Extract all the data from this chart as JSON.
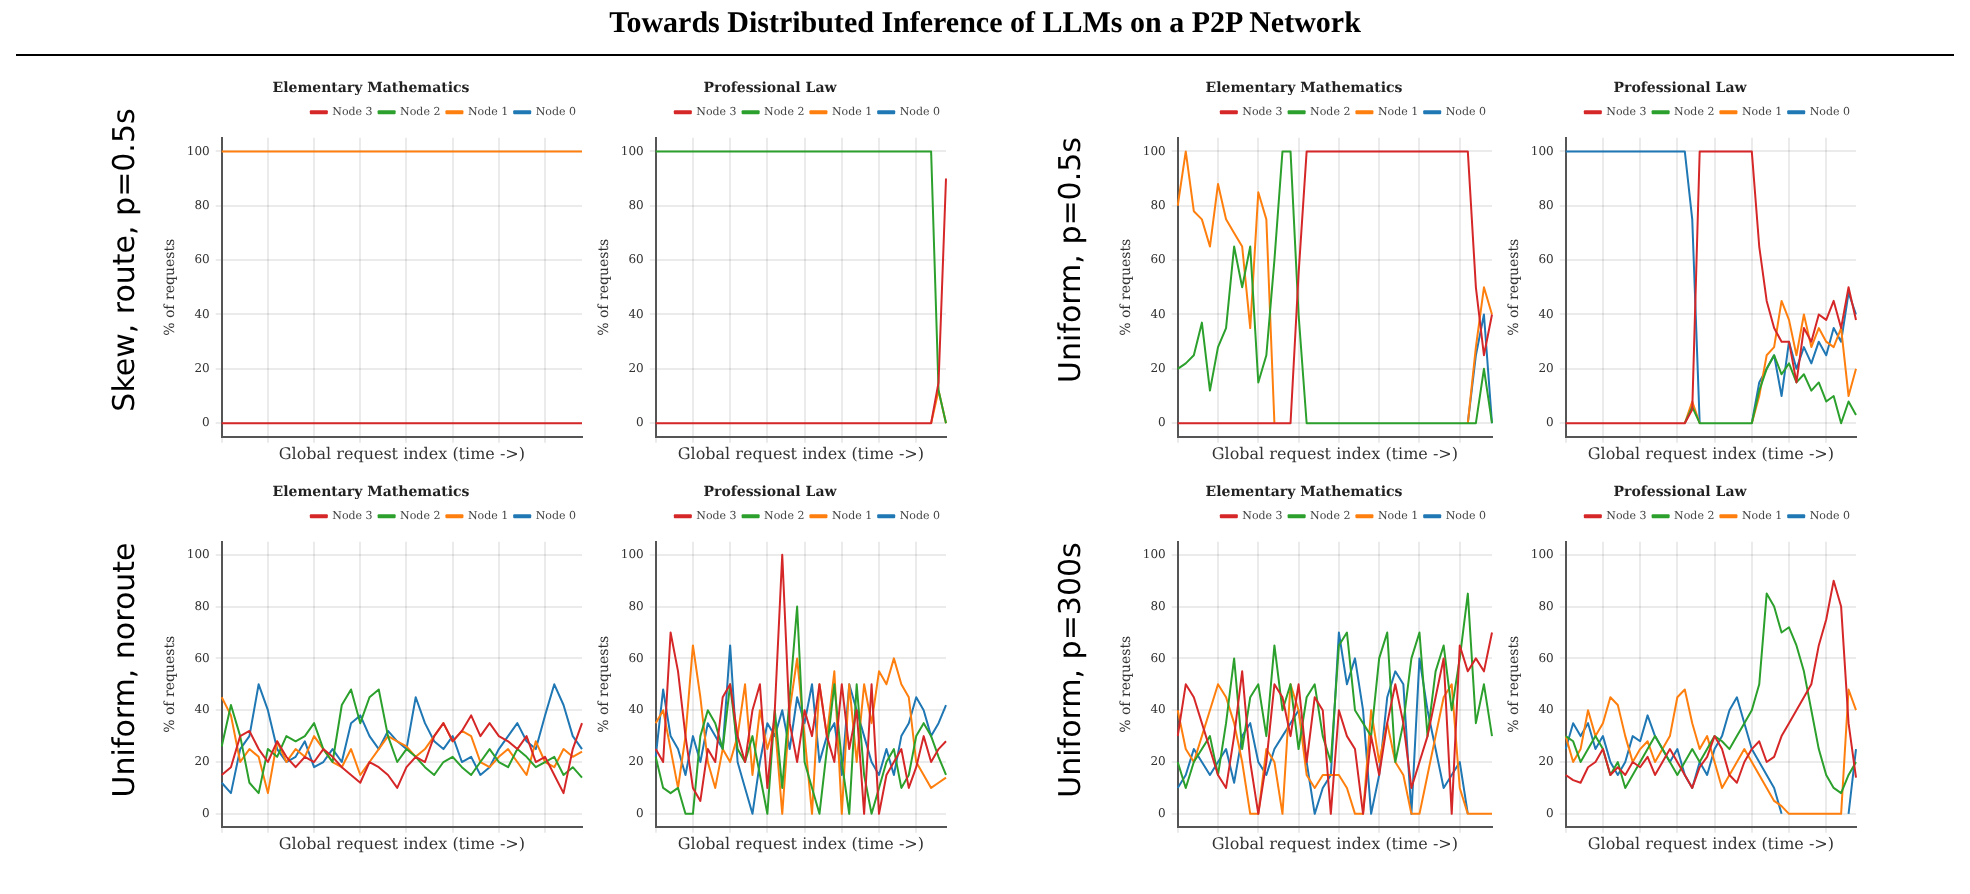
{
  "chart_data": [
    {
      "type": "line",
      "title": "Elementary Mathematics",
      "subtitle": "Skew, route, p=0.5s",
      "annotations": [
        "Towards Distributed Inference of LLMs on a P2P Network"
      ],
      "xlabel": "Global request index (time ->)",
      "ylabel": "% of requests",
      "legend": "top right",
      "grid": true,
      "tick_labels": "y",
      "ylim": [
        -5,
        105
      ],
      "yticks": [
        0,
        20,
        40,
        60,
        80,
        100
      ],
      "categories": [
        null,
        null,
        null,
        null,
        null,
        null,
        null,
        null,
        null,
        null,
        null,
        null,
        null,
        null,
        null,
        null,
        null,
        null,
        null,
        null,
        null,
        null,
        null,
        null,
        null,
        null,
        null,
        null,
        null,
        null,
        null,
        null,
        null,
        null,
        null,
        null,
        null,
        null,
        null,
        null
      ],
      "series": [
        {
          "name": "Node 0",
          "color": "#1f77b4",
          "values": [
            null,
            null,
            null,
            null,
            null,
            null,
            null,
            null,
            null,
            null,
            null,
            null,
            null,
            null,
            null,
            null,
            null,
            null,
            null,
            null,
            null,
            null,
            null,
            null,
            null,
            null,
            null,
            null,
            null,
            null,
            null,
            null,
            null,
            null,
            null,
            null,
            null,
            null,
            null,
            null
          ]
        },
        {
          "name": "Node 1",
          "color": "#ff7f0e",
          "values": [
            100,
            100,
            100,
            100,
            100,
            100,
            100,
            100,
            100,
            100,
            100,
            100,
            100,
            100,
            100,
            100,
            100,
            100,
            100,
            100,
            100,
            100,
            100,
            100,
            100,
            100,
            100,
            100,
            100,
            100,
            100,
            100,
            100,
            100,
            100,
            100,
            100,
            100,
            100,
            100
          ]
        },
        {
          "name": "Node 2",
          "color": "#2ca02c",
          "values": [
            null,
            null,
            null,
            null,
            null,
            null,
            null,
            null,
            null,
            null,
            null,
            null,
            null,
            null,
            null,
            null,
            null,
            null,
            null,
            null,
            null,
            null,
            null,
            null,
            null,
            null,
            null,
            null,
            null,
            null,
            null,
            null,
            null,
            null,
            null,
            null,
            null,
            null,
            null,
            null
          ]
        },
        {
          "name": "Node 3",
          "color": "#d62728",
          "values": [
            0,
            0,
            0,
            0,
            0,
            0,
            0,
            0,
            0,
            0,
            0,
            0,
            0,
            0,
            0,
            0,
            0,
            0,
            0,
            0,
            0,
            0,
            0,
            0,
            0,
            0,
            0,
            0,
            0,
            0,
            0,
            0,
            0,
            0,
            0,
            0,
            0,
            0,
            0,
            0
          ]
        }
      ]
    },
    {
      "type": "line",
      "title": "Professional Law",
      "xlabel": "Global request index (time ->)",
      "ylabel": "% of requests",
      "legend": "top right",
      "grid": true,
      "tick_labels": "y",
      "ylim": [
        -5,
        105
      ],
      "yticks": [
        0,
        20,
        40,
        60,
        80,
        100
      ],
      "categories": [
        null,
        null,
        null,
        null,
        null,
        null,
        null,
        null,
        null,
        null,
        null,
        null,
        null,
        null,
        null,
        null,
        null,
        null,
        null,
        null,
        null,
        null,
        null,
        null,
        null,
        null,
        null,
        null,
        null,
        null,
        null,
        null,
        null,
        null,
        null,
        null,
        null,
        null,
        null,
        null
      ],
      "series": [
        {
          "name": "Node 0",
          "color": "#1f77b4",
          "values": [
            null,
            null,
            null,
            null,
            null,
            null,
            null,
            null,
            null,
            null,
            null,
            null,
            null,
            null,
            null,
            null,
            null,
            null,
            null,
            null,
            null,
            null,
            null,
            null,
            null,
            null,
            null,
            null,
            null,
            null,
            null,
            null,
            null,
            null,
            null,
            null,
            null,
            null,
            null,
            null
          ]
        },
        {
          "name": "Node 1",
          "color": "#ff7f0e",
          "values": [
            null,
            null,
            null,
            null,
            null,
            null,
            null,
            null,
            null,
            null,
            null,
            null,
            null,
            null,
            null,
            null,
            null,
            null,
            null,
            null,
            null,
            null,
            null,
            null,
            null,
            null,
            null,
            null,
            null,
            null,
            null,
            null,
            null,
            null,
            null,
            null,
            null,
            0,
            12,
            0
          ]
        },
        {
          "name": "Node 2",
          "color": "#2ca02c",
          "values": [
            100,
            100,
            100,
            100,
            100,
            100,
            100,
            100,
            100,
            100,
            100,
            100,
            100,
            100,
            100,
            100,
            100,
            100,
            100,
            100,
            100,
            100,
            100,
            100,
            100,
            100,
            100,
            100,
            100,
            100,
            100,
            100,
            100,
            100,
            100,
            100,
            100,
            100,
            12,
            0
          ]
        },
        {
          "name": "Node 3",
          "color": "#d62728",
          "values": [
            0,
            0,
            0,
            0,
            0,
            0,
            0,
            0,
            0,
            0,
            0,
            0,
            0,
            0,
            0,
            0,
            0,
            0,
            0,
            0,
            0,
            0,
            0,
            0,
            0,
            0,
            0,
            0,
            0,
            0,
            0,
            0,
            0,
            0,
            0,
            0,
            0,
            0,
            15,
            90
          ]
        }
      ]
    },
    {
      "type": "line",
      "title": "Elementary Mathematics",
      "subtitle": "Uniform, p=0.5s",
      "xlabel": "Global request index (time ->)",
      "ylabel": "% of requests",
      "legend": "top right",
      "grid": true,
      "tick_labels": "y",
      "ylim": [
        -5,
        105
      ],
      "yticks": [
        0,
        20,
        40,
        60,
        80,
        100
      ],
      "categories": [
        null,
        null,
        null,
        null,
        null,
        null,
        null,
        null,
        null,
        null,
        null,
        null,
        null,
        null,
        null,
        null,
        null,
        null,
        null,
        null,
        null,
        null,
        null,
        null,
        null,
        null,
        null,
        null,
        null,
        null,
        null,
        null,
        null,
        null,
        null,
        null,
        null,
        null,
        null,
        null
      ],
      "series": [
        {
          "name": "Node 0",
          "color": "#1f77b4",
          "values": [
            null,
            null,
            null,
            null,
            null,
            null,
            null,
            null,
            null,
            null,
            null,
            null,
            null,
            null,
            null,
            null,
            null,
            null,
            null,
            null,
            null,
            null,
            null,
            null,
            null,
            null,
            null,
            null,
            null,
            null,
            null,
            null,
            null,
            null,
            null,
            null,
            0,
            25,
            40,
            0
          ]
        },
        {
          "name": "Node 1",
          "color": "#ff7f0e",
          "values": [
            80,
            100,
            78,
            75,
            65,
            88,
            75,
            70,
            65,
            35,
            85,
            75,
            0,
            null,
            null,
            null,
            null,
            null,
            null,
            null,
            null,
            null,
            null,
            null,
            null,
            null,
            null,
            null,
            null,
            null,
            null,
            null,
            null,
            null,
            null,
            null,
            0,
            28,
            50,
            40
          ]
        },
        {
          "name": "Node 2",
          "color": "#2ca02c",
          "values": [
            20,
            22,
            25,
            37,
            12,
            28,
            35,
            65,
            50,
            65,
            15,
            25,
            60,
            100,
            100,
            40,
            0,
            0,
            0,
            0,
            0,
            0,
            0,
            0,
            0,
            0,
            0,
            0,
            0,
            0,
            0,
            0,
            0,
            0,
            0,
            0,
            0,
            0,
            20,
            0
          ]
        },
        {
          "name": "Node 3",
          "color": "#d62728",
          "values": [
            0,
            0,
            0,
            0,
            0,
            0,
            0,
            0,
            0,
            0,
            0,
            0,
            0,
            0,
            0,
            55,
            100,
            100,
            100,
            100,
            100,
            100,
            100,
            100,
            100,
            100,
            100,
            100,
            100,
            100,
            100,
            100,
            100,
            100,
            100,
            100,
            100,
            50,
            25,
            40
          ]
        }
      ]
    },
    {
      "type": "line",
      "title": "Professional Law",
      "xlabel": "Global request index (time ->)",
      "ylabel": "% of requests",
      "legend": "top right",
      "grid": true,
      "tick_labels": "y",
      "ylim": [
        -5,
        105
      ],
      "yticks": [
        0,
        20,
        40,
        60,
        80,
        100
      ],
      "categories": [
        null,
        null,
        null,
        null,
        null,
        null,
        null,
        null,
        null,
        null,
        null,
        null,
        null,
        null,
        null,
        null,
        null,
        null,
        null,
        null,
        null,
        null,
        null,
        null,
        null,
        null,
        null,
        null,
        null,
        null,
        null,
        null,
        null,
        null,
        null,
        null,
        null,
        null,
        null,
        null
      ],
      "series": [
        {
          "name": "Node 0",
          "color": "#1f77b4",
          "values": [
            100,
            100,
            100,
            100,
            100,
            100,
            100,
            100,
            100,
            100,
            100,
            100,
            100,
            100,
            100,
            100,
            100,
            75,
            0,
            null,
            null,
            null,
            null,
            null,
            null,
            0,
            15,
            20,
            25,
            10,
            30,
            20,
            28,
            22,
            30,
            25,
            35,
            30,
            48,
            40
          ]
        },
        {
          "name": "Node 1",
          "color": "#ff7f0e",
          "values": [
            null,
            null,
            null,
            null,
            null,
            null,
            null,
            null,
            null,
            null,
            null,
            null,
            null,
            null,
            null,
            null,
            0,
            8,
            0,
            null,
            null,
            null,
            null,
            null,
            null,
            0,
            10,
            25,
            28,
            45,
            38,
            25,
            40,
            28,
            35,
            30,
            28,
            35,
            10,
            20
          ]
        },
        {
          "name": "Node 2",
          "color": "#2ca02c",
          "values": [
            null,
            null,
            null,
            null,
            null,
            null,
            null,
            null,
            null,
            null,
            null,
            null,
            null,
            null,
            null,
            null,
            0,
            6,
            0,
            0,
            0,
            0,
            0,
            0,
            0,
            0,
            12,
            20,
            25,
            18,
            22,
            15,
            18,
            12,
            15,
            8,
            10,
            0,
            8,
            3
          ]
        },
        {
          "name": "Node 3",
          "color": "#d62728",
          "values": [
            0,
            0,
            0,
            0,
            0,
            0,
            0,
            0,
            0,
            0,
            0,
            0,
            0,
            0,
            0,
            0,
            0,
            5,
            100,
            100,
            100,
            100,
            100,
            100,
            100,
            100,
            65,
            45,
            35,
            30,
            30,
            15,
            35,
            30,
            40,
            38,
            45,
            35,
            50,
            38
          ]
        }
      ]
    },
    {
      "type": "line",
      "title": "Elementary Mathematics",
      "subtitle": "Uniform, noroute",
      "xlabel": "Global request index (time ->)",
      "ylabel": "% of requests",
      "legend": "top right",
      "grid": true,
      "tick_labels": "y",
      "ylim": [
        -5,
        105
      ],
      "yticks": [
        0,
        20,
        40,
        60,
        80,
        100
      ],
      "categories": [
        null,
        null,
        null,
        null,
        null,
        null,
        null,
        null,
        null,
        null,
        null,
        null,
        null,
        null,
        null,
        null,
        null,
        null,
        null,
        null,
        null,
        null,
        null,
        null,
        null,
        null,
        null,
        null,
        null,
        null,
        null,
        null,
        null,
        null,
        null,
        null,
        null,
        null,
        null,
        null
      ],
      "series": [
        {
          "name": "Node 0",
          "color": "#1f77b4",
          "values": [
            12,
            8,
            25,
            30,
            50,
            40,
            25,
            20,
            22,
            28,
            18,
            20,
            25,
            20,
            35,
            38,
            30,
            25,
            32,
            28,
            25,
            45,
            35,
            28,
            25,
            30,
            20,
            22,
            15,
            18,
            25,
            30,
            35,
            28,
            25,
            38,
            50,
            42,
            30,
            25
          ]
        },
        {
          "name": "Node 1",
          "color": "#ff7f0e",
          "values": [
            45,
            38,
            20,
            25,
            22,
            8,
            28,
            20,
            25,
            22,
            30,
            25,
            20,
            18,
            25,
            15,
            20,
            25,
            30,
            28,
            26,
            22,
            25,
            30,
            35,
            28,
            32,
            30,
            20,
            18,
            22,
            25,
            20,
            15,
            28,
            20,
            18,
            25,
            22,
            24
          ]
        },
        {
          "name": "Node 2",
          "color": "#2ca02c",
          "values": [
            26,
            42,
            30,
            12,
            8,
            25,
            22,
            30,
            28,
            30,
            35,
            25,
            20,
            42,
            48,
            35,
            45,
            48,
            30,
            20,
            25,
            22,
            18,
            15,
            20,
            22,
            18,
            15,
            20,
            25,
            20,
            18,
            25,
            22,
            18,
            20,
            22,
            15,
            18,
            14
          ]
        },
        {
          "name": "Node 3",
          "color": "#d62728",
          "values": [
            15,
            18,
            30,
            32,
            25,
            20,
            28,
            22,
            18,
            22,
            20,
            25,
            22,
            18,
            15,
            12,
            20,
            18,
            15,
            10,
            18,
            22,
            20,
            30,
            35,
            28,
            32,
            38,
            30,
            35,
            30,
            28,
            25,
            30,
            20,
            22,
            15,
            8,
            25,
            35
          ]
        }
      ]
    },
    {
      "type": "line",
      "title": "Professional Law",
      "xlabel": "Global request index (time ->)",
      "ylabel": "% of requests",
      "legend": "top right",
      "grid": true,
      "tick_labels": "y",
      "ylim": [
        -5,
        105
      ],
      "yticks": [
        0,
        20,
        40,
        60,
        80,
        100
      ],
      "categories": [
        null,
        null,
        null,
        null,
        null,
        null,
        null,
        null,
        null,
        null,
        null,
        null,
        null,
        null,
        null,
        null,
        null,
        null,
        null,
        null,
        null,
        null,
        null,
        null,
        null,
        null,
        null,
        null,
        null,
        null,
        null,
        null,
        null,
        null,
        null,
        null,
        null,
        null,
        null,
        null
      ],
      "series": [
        {
          "name": "Node 0",
          "color": "#1f77b4",
          "values": [
            22,
            48,
            30,
            25,
            15,
            30,
            20,
            35,
            30,
            25,
            65,
            20,
            10,
            0,
            20,
            35,
            30,
            40,
            25,
            45,
            35,
            50,
            20,
            30,
            35,
            15,
            50,
            40,
            30,
            20,
            15,
            25,
            15,
            30,
            35,
            45,
            40,
            30,
            35,
            42
          ]
        },
        {
          "name": "Node 1",
          "color": "#ff7f0e",
          "values": [
            35,
            40,
            25,
            10,
            30,
            65,
            45,
            20,
            10,
            25,
            20,
            30,
            50,
            15,
            40,
            25,
            35,
            0,
            40,
            60,
            30,
            0,
            50,
            30,
            55,
            0,
            50,
            20,
            50,
            35,
            55,
            50,
            60,
            50,
            45,
            20,
            15,
            10,
            12,
            14
          ]
        },
        {
          "name": "Node 2",
          "color": "#2ca02c",
          "values": [
            22,
            10,
            8,
            10,
            0,
            0,
            30,
            40,
            35,
            25,
            50,
            25,
            20,
            30,
            15,
            0,
            40,
            10,
            45,
            80,
            20,
            10,
            0,
            25,
            50,
            20,
            0,
            50,
            15,
            0,
            10,
            20,
            25,
            10,
            15,
            30,
            35,
            30,
            22,
            15
          ]
        },
        {
          "name": "Node 3",
          "color": "#d62728",
          "values": [
            25,
            20,
            70,
            55,
            30,
            10,
            5,
            25,
            20,
            45,
            50,
            30,
            20,
            40,
            50,
            10,
            40,
            100,
            35,
            20,
            40,
            30,
            50,
            30,
            20,
            50,
            25,
            40,
            0,
            50,
            0,
            15,
            20,
            25,
            10,
            18,
            30,
            20,
            25,
            28
          ]
        }
      ]
    },
    {
      "type": "line",
      "title": "Elementary Mathematics",
      "subtitle": "Uniform, p=300s",
      "xlabel": "Global request index (time ->)",
      "ylabel": "% of requests",
      "legend": "top right",
      "grid": true,
      "tick_labels": "y",
      "ylim": [
        -5,
        105
      ],
      "yticks": [
        0,
        20,
        40,
        60,
        80,
        100
      ],
      "categories": [
        null,
        null,
        null,
        null,
        null,
        null,
        null,
        null,
        null,
        null,
        null,
        null,
        null,
        null,
        null,
        null,
        null,
        null,
        null,
        null,
        null,
        null,
        null,
        null,
        null,
        null,
        null,
        null,
        null,
        null,
        null,
        null,
        null,
        null,
        null,
        null,
        null,
        null,
        null,
        null
      ],
      "series": [
        {
          "name": "Node 0",
          "color": "#1f77b4",
          "values": [
            10,
            15,
            25,
            20,
            15,
            20,
            25,
            12,
            30,
            35,
            20,
            15,
            25,
            30,
            35,
            40,
            20,
            0,
            10,
            15,
            70,
            50,
            60,
            40,
            0,
            15,
            45,
            55,
            50,
            0,
            60,
            40,
            25,
            10,
            15,
            20,
            0,
            null,
            null,
            null
          ]
        },
        {
          "name": "Node 1",
          "color": "#ff7f0e",
          "values": [
            40,
            25,
            20,
            30,
            40,
            50,
            45,
            35,
            20,
            0,
            0,
            25,
            20,
            0,
            50,
            40,
            15,
            10,
            15,
            15,
            15,
            10,
            0,
            0,
            40,
            20,
            35,
            20,
            15,
            0,
            0,
            15,
            30,
            45,
            50,
            10,
            0,
            0,
            0,
            0
          ]
        },
        {
          "name": "Node 2",
          "color": "#2ca02c",
          "values": [
            20,
            10,
            20,
            25,
            30,
            15,
            35,
            60,
            25,
            45,
            50,
            30,
            65,
            40,
            50,
            25,
            45,
            50,
            30,
            20,
            65,
            70,
            40,
            35,
            30,
            60,
            70,
            20,
            35,
            60,
            70,
            30,
            55,
            65,
            40,
            60,
            85,
            35,
            50,
            30
          ]
        },
        {
          "name": "Node 3",
          "color": "#d62728",
          "values": [
            30,
            50,
            45,
            35,
            25,
            15,
            10,
            30,
            55,
            20,
            0,
            20,
            50,
            45,
            30,
            50,
            20,
            45,
            40,
            0,
            40,
            30,
            25,
            0,
            30,
            15,
            35,
            50,
            35,
            10,
            20,
            30,
            45,
            60,
            0,
            65,
            55,
            60,
            55,
            70
          ]
        }
      ]
    },
    {
      "type": "line",
      "title": "Professional Law",
      "xlabel": "Global request index (time ->)",
      "ylabel": "% of requests",
      "legend": "top right",
      "grid": true,
      "tick_labels": "y",
      "ylim": [
        -5,
        105
      ],
      "yticks": [
        0,
        20,
        40,
        60,
        80,
        100
      ],
      "categories": [
        null,
        null,
        null,
        null,
        null,
        null,
        null,
        null,
        null,
        null,
        null,
        null,
        null,
        null,
        null,
        null,
        null,
        null,
        null,
        null,
        null,
        null,
        null,
        null,
        null,
        null,
        null,
        null,
        null,
        null,
        null,
        null,
        null,
        null,
        null,
        null,
        null,
        null,
        null,
        null
      ],
      "series": [
        {
          "name": "Node 0",
          "color": "#1f77b4",
          "values": [
            25,
            35,
            30,
            35,
            25,
            30,
            20,
            15,
            20,
            30,
            28,
            38,
            30,
            25,
            20,
            25,
            15,
            10,
            20,
            15,
            25,
            30,
            40,
            45,
            35,
            25,
            20,
            15,
            10,
            0,
            null,
            null,
            null,
            null,
            null,
            null,
            null,
            null,
            0,
            25
          ]
        },
        {
          "name": "Node 1",
          "color": "#ff7f0e",
          "values": [
            30,
            20,
            25,
            40,
            30,
            35,
            45,
            42,
            30,
            20,
            25,
            28,
            20,
            25,
            30,
            45,
            48,
            35,
            25,
            30,
            20,
            10,
            15,
            20,
            25,
            20,
            15,
            10,
            5,
            3,
            0,
            0,
            0,
            0,
            0,
            0,
            0,
            0,
            48,
            40
          ]
        },
        {
          "name": "Node 2",
          "color": "#2ca02c",
          "values": [
            30,
            28,
            20,
            25,
            30,
            25,
            15,
            20,
            10,
            15,
            20,
            25,
            30,
            25,
            20,
            15,
            20,
            25,
            20,
            25,
            30,
            28,
            25,
            30,
            35,
            40,
            50,
            85,
            80,
            70,
            72,
            65,
            55,
            40,
            25,
            15,
            10,
            8,
            15,
            20
          ]
        },
        {
          "name": "Node 3",
          "color": "#d62728",
          "values": [
            15,
            13,
            12,
            18,
            20,
            25,
            15,
            18,
            15,
            20,
            18,
            22,
            15,
            20,
            25,
            20,
            15,
            10,
            18,
            22,
            30,
            25,
            15,
            12,
            20,
            25,
            28,
            20,
            22,
            30,
            35,
            40,
            45,
            50,
            65,
            75,
            90,
            80,
            35,
            14
          ]
        }
      ]
    }
  ]
}
